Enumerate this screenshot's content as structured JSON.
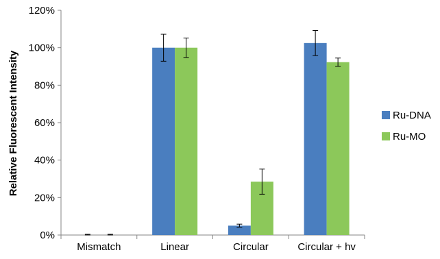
{
  "chart_data": {
    "type": "bar",
    "title": "",
    "xlabel": "",
    "ylabel": "Relative Fluorescent Intensity",
    "categories": [
      "Mismatch",
      "Linear",
      "Circular",
      "Circular + hv"
    ],
    "series": [
      {
        "name": "Ru-DNA",
        "color": "#4a7ebf",
        "values": [
          0,
          100,
          5,
          102.5
        ],
        "errors": [
          0.4,
          7.2,
          0.8,
          6.7
        ]
      },
      {
        "name": "Ru-MO",
        "color": "#8cc85a",
        "values": [
          0,
          100,
          28.5,
          92.3
        ],
        "errors": [
          0.4,
          5.2,
          6.7,
          2.2
        ]
      }
    ],
    "ylim": [
      0,
      120
    ],
    "yticks": [
      "0%",
      "20%",
      "40%",
      "60%",
      "80%",
      "100%",
      "120%"
    ],
    "grid": false,
    "legend_position": "right"
  }
}
